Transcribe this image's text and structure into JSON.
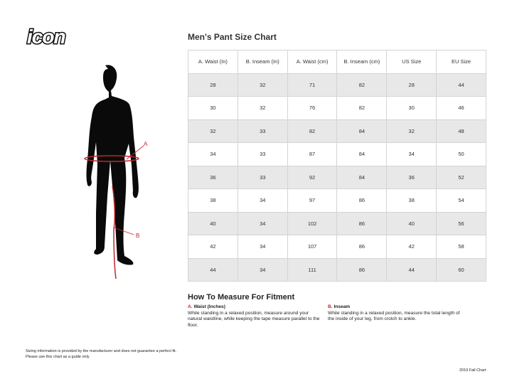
{
  "brand": "icon",
  "figure": {
    "label_a": "A",
    "label_b": "B"
  },
  "title": "Men's Pant Size Chart",
  "table": {
    "headers": [
      "A. Waist (In)",
      "B. Inseam (In)",
      "A. Waist (cm)",
      "B. Inseam (cm)",
      "US Size",
      "EU Size"
    ],
    "rows": [
      [
        "28",
        "32",
        "71",
        "82",
        "28",
        "44"
      ],
      [
        "30",
        "32",
        "76",
        "82",
        "30",
        "46"
      ],
      [
        "32",
        "33",
        "82",
        "84",
        "32",
        "48"
      ],
      [
        "34",
        "33",
        "87",
        "84",
        "34",
        "50"
      ],
      [
        "36",
        "33",
        "92",
        "84",
        "36",
        "52"
      ],
      [
        "38",
        "34",
        "97",
        "86",
        "38",
        "54"
      ],
      [
        "40",
        "34",
        "102",
        "86",
        "40",
        "56"
      ],
      [
        "42",
        "34",
        "107",
        "86",
        "42",
        "58"
      ],
      [
        "44",
        "34",
        "111",
        "86",
        "44",
        "60"
      ]
    ]
  },
  "howto": {
    "title": "How To Measure For Fitment",
    "waist": {
      "letter": "A.",
      "label": "Waist (Inches)",
      "text": "While standing in a relaxed position, measure around your natural waistline, while keeping the tape measure parallel to the floor."
    },
    "inseam": {
      "letter": "B.",
      "label": "Inseam",
      "text": "While standing in a relaxed position, measure the total length of the inside of your leg, from crotch to ankle."
    }
  },
  "footer": {
    "line1": "Sizing information is provided by the manufacturer and does not guarantee a perfect fit.",
    "line2": "Please use this chart as a guide only",
    "edition": "2019 Fall Chart"
  },
  "colors": {
    "accent": "#c0262d"
  }
}
